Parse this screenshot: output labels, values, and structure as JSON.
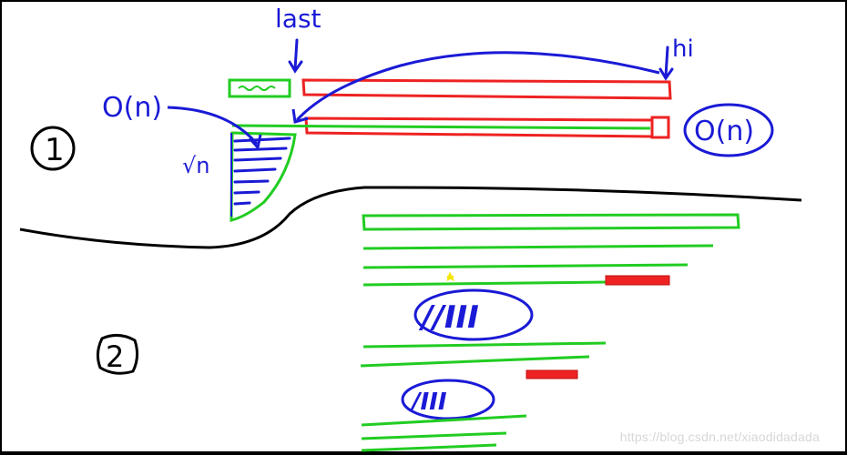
{
  "labels": {
    "last": "last",
    "hi": "hi",
    "o_n_left": "O(n)",
    "o_n_right": "O(n)",
    "sqrt_n": "√n",
    "part_one": "1",
    "part_two": "2",
    "squiggle_big": "//III",
    "squiggle_small": "/III"
  },
  "watermark": "https://blog.csdn.net/xiaodidadada",
  "colors": {
    "background": "#ffffff",
    "ink": "#000000",
    "blue": "#1a1ad6",
    "green": "#22cc22",
    "red": "#ee2222",
    "yellow": "#f2e600"
  }
}
